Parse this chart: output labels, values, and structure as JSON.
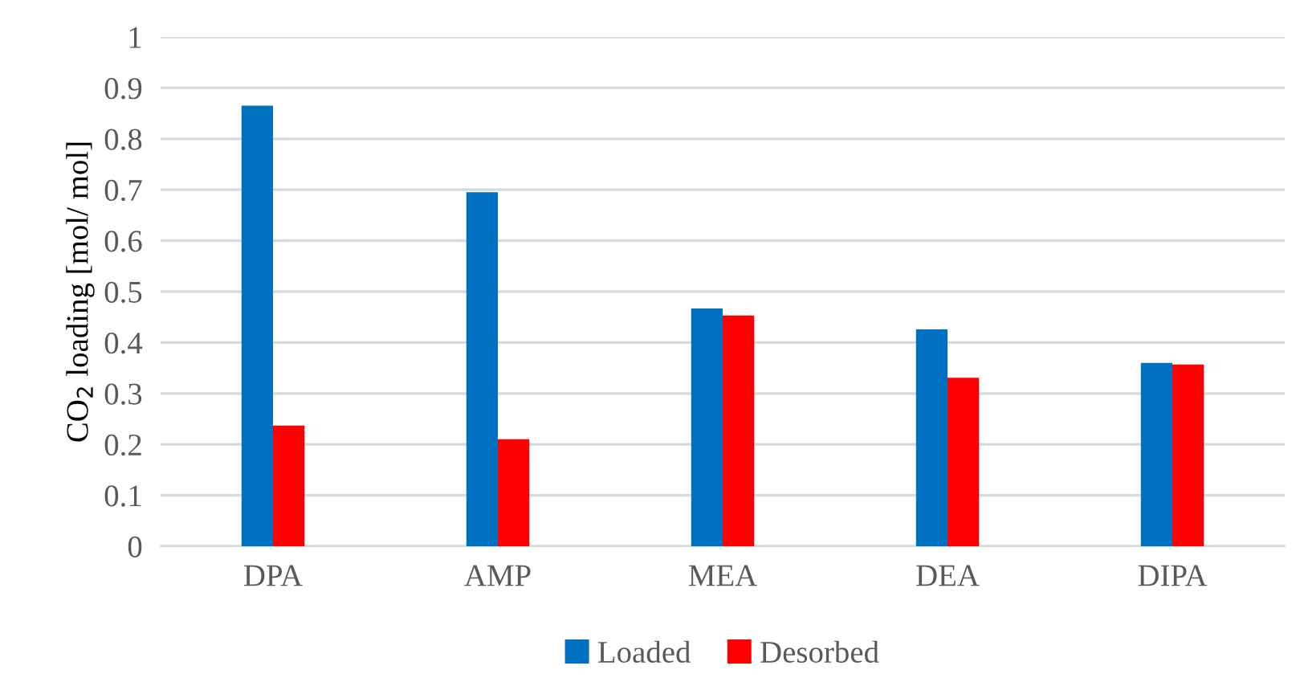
{
  "chart_data": {
    "type": "bar",
    "ylabel": "CO$_{2}$ loading [mol/ mol]",
    "categories": [
      "DPA",
      "AMP",
      "MEA",
      "DEA",
      "DIPA"
    ],
    "series": [
      {
        "name": "Loaded",
        "color": "#0070c0",
        "values": [
          0.865,
          0.695,
          0.467,
          0.426,
          0.36
        ]
      },
      {
        "name": "Desorbed",
        "color": "#ff0000",
        "values": [
          0.237,
          0.21,
          0.453,
          0.331,
          0.357
        ]
      }
    ],
    "ylim": [
      0,
      1
    ],
    "yticks": [
      0,
      0.1,
      0.2,
      0.3,
      0.4,
      0.5,
      0.6,
      0.7,
      0.8,
      0.9,
      1
    ],
    "grid": "y",
    "legend": "bottom"
  }
}
